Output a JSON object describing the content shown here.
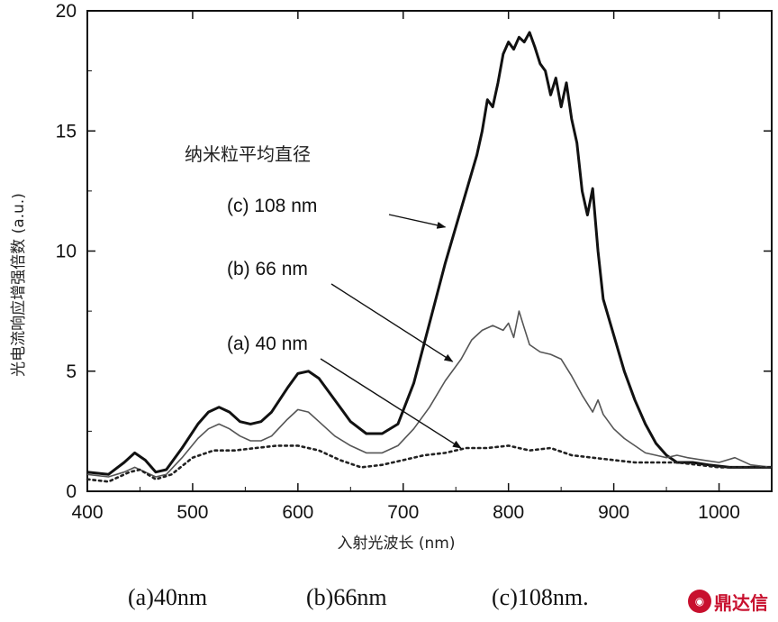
{
  "chart_data": {
    "type": "line",
    "title": "",
    "xlabel": "入射光波长 (nm)",
    "ylabel": "光电流响应增强倍数 (a.u.)",
    "xlim": [
      400,
      1050
    ],
    "ylim": [
      0,
      20
    ],
    "xticks": [
      400,
      500,
      600,
      700,
      800,
      900,
      1000
    ],
    "yticks": [
      0,
      5,
      10,
      15,
      20
    ],
    "grid": false,
    "legend_title": "纳米粒平均直径",
    "series": [
      {
        "name": "(c) 108 nm",
        "style": "thick-solid",
        "color": "#111111",
        "x": [
          400,
          420,
          435,
          445,
          455,
          465,
          475,
          490,
          505,
          515,
          525,
          535,
          545,
          555,
          565,
          575,
          590,
          600,
          610,
          620,
          635,
          650,
          665,
          680,
          695,
          710,
          725,
          740,
          750,
          760,
          770,
          775,
          780,
          785,
          790,
          795,
          800,
          805,
          810,
          815,
          820,
          825,
          830,
          835,
          840,
          845,
          850,
          855,
          860,
          865,
          870,
          875,
          880,
          885,
          890,
          900,
          910,
          920,
          930,
          940,
          950,
          960,
          975,
          990,
          1010,
          1030,
          1050
        ],
        "y": [
          0.8,
          0.7,
          1.2,
          1.6,
          1.3,
          0.8,
          0.9,
          1.8,
          2.8,
          3.3,
          3.5,
          3.3,
          2.9,
          2.8,
          2.9,
          3.3,
          4.3,
          4.9,
          5.0,
          4.7,
          3.8,
          2.9,
          2.4,
          2.4,
          2.8,
          4.5,
          7.0,
          9.5,
          11.0,
          12.5,
          14.0,
          15.0,
          16.3,
          16.0,
          17.0,
          18.2,
          18.7,
          18.4,
          18.9,
          18.7,
          19.1,
          18.5,
          17.8,
          17.5,
          16.5,
          17.2,
          16.0,
          17.0,
          15.5,
          14.5,
          12.5,
          11.5,
          12.6,
          10.0,
          8.0,
          6.5,
          5.0,
          3.8,
          2.8,
          2.0,
          1.5,
          1.2,
          1.2,
          1.1,
          1.0,
          1.0,
          1.0
        ]
      },
      {
        "name": "(b) 66 nm",
        "style": "thin-solid",
        "color": "#555555",
        "x": [
          400,
          420,
          435,
          445,
          455,
          465,
          475,
          490,
          505,
          515,
          525,
          535,
          545,
          555,
          565,
          575,
          590,
          600,
          610,
          620,
          635,
          650,
          665,
          680,
          695,
          710,
          725,
          740,
          755,
          765,
          775,
          785,
          795,
          800,
          805,
          810,
          815,
          820,
          830,
          840,
          850,
          860,
          870,
          880,
          885,
          890,
          900,
          910,
          920,
          930,
          940,
          950,
          960,
          970,
          985,
          1000,
          1015,
          1030,
          1050
        ],
        "y": [
          0.7,
          0.6,
          0.8,
          1.0,
          0.8,
          0.6,
          0.7,
          1.4,
          2.2,
          2.6,
          2.8,
          2.6,
          2.3,
          2.1,
          2.1,
          2.3,
          3.0,
          3.4,
          3.3,
          2.9,
          2.3,
          1.9,
          1.6,
          1.6,
          1.9,
          2.6,
          3.5,
          4.6,
          5.5,
          6.3,
          6.7,
          6.9,
          6.7,
          7.0,
          6.4,
          7.5,
          6.8,
          6.1,
          5.8,
          5.7,
          5.5,
          4.8,
          4.0,
          3.3,
          3.8,
          3.2,
          2.6,
          2.2,
          1.9,
          1.6,
          1.5,
          1.4,
          1.5,
          1.4,
          1.3,
          1.2,
          1.4,
          1.1,
          1.0
        ]
      },
      {
        "name": "(a) 40 nm",
        "style": "dotted",
        "color": "#222222",
        "x": [
          400,
          420,
          440,
          450,
          465,
          480,
          500,
          520,
          540,
          560,
          580,
          600,
          620,
          640,
          660,
          680,
          700,
          720,
          740,
          760,
          780,
          800,
          820,
          840,
          860,
          880,
          900,
          920,
          940,
          960,
          980,
          1000,
          1020,
          1040,
          1050
        ],
        "y": [
          0.5,
          0.4,
          0.8,
          0.9,
          0.5,
          0.7,
          1.4,
          1.7,
          1.7,
          1.8,
          1.9,
          1.9,
          1.7,
          1.3,
          1.0,
          1.1,
          1.3,
          1.5,
          1.6,
          1.8,
          1.8,
          1.9,
          1.7,
          1.8,
          1.5,
          1.4,
          1.3,
          1.2,
          1.2,
          1.2,
          1.1,
          1.0,
          1.0,
          1.0,
          1.0
        ]
      }
    ]
  },
  "caption": {
    "a": "(a)40nm",
    "b": "(b)66nm",
    "c": "(c)108nm."
  },
  "watermark": {
    "text": "鼎达信"
  }
}
